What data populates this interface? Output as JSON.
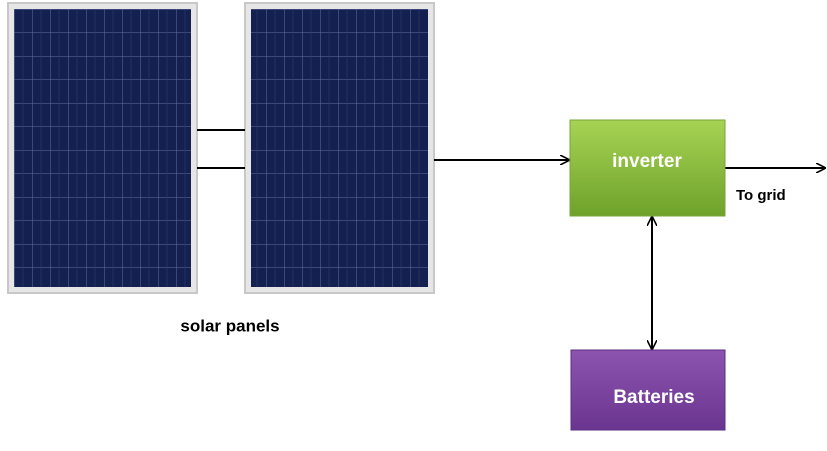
{
  "labels": {
    "panels": "solar panels",
    "inverter": "inverter",
    "grid": "To grid",
    "batteries": "Batteries"
  }
}
